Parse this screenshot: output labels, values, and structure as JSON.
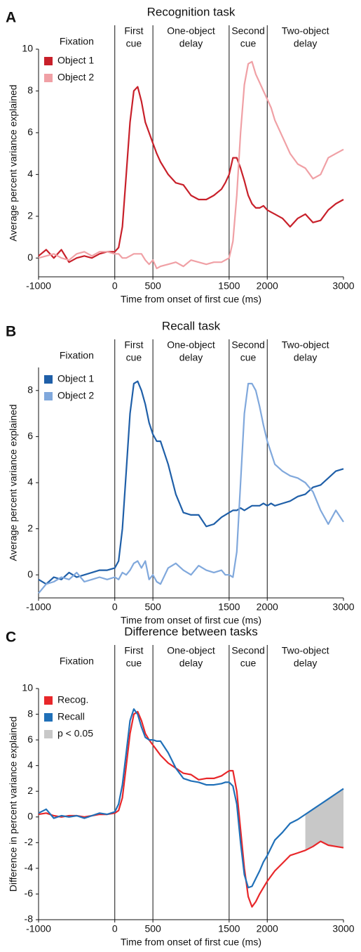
{
  "chart_data": [
    {
      "type": "line",
      "panel": "A",
      "title": "Recognition task",
      "phase_labels": [
        [
          "Fixation"
        ],
        [
          "First",
          "cue"
        ],
        [
          "One-object",
          "delay"
        ],
        [
          "Second",
          "cue"
        ],
        [
          "Two-object",
          "delay"
        ]
      ],
      "event_lines": [
        0,
        500,
        1500,
        2000
      ],
      "xlabel": "Time from onset of first cue (ms)",
      "ylabel": "Average percent variance explained",
      "xlim": [
        -1000,
        3000
      ],
      "xticks": [
        -1000,
        0,
        500,
        1500,
        2000,
        3000
      ],
      "ylim": [
        -0.9,
        10
      ],
      "yticks": [
        0,
        2,
        4,
        6,
        8,
        10
      ],
      "x": [
        -1000,
        -900,
        -800,
        -700,
        -600,
        -500,
        -400,
        -300,
        -200,
        -100,
        0,
        50,
        100,
        150,
        200,
        250,
        300,
        350,
        400,
        450,
        500,
        550,
        600,
        700,
        800,
        900,
        1000,
        1100,
        1200,
        1300,
        1400,
        1450,
        1500,
        1550,
        1600,
        1650,
        1700,
        1750,
        1800,
        1850,
        1900,
        1950,
        2000,
        2050,
        2100,
        2200,
        2300,
        2400,
        2500,
        2600,
        2700,
        2800,
        2900,
        3000
      ],
      "series": [
        {
          "name": "Object 1",
          "color": "#c8202a",
          "values": [
            0.1,
            0.4,
            0.0,
            0.4,
            -0.2,
            0.0,
            0.1,
            0.0,
            0.2,
            0.3,
            0.3,
            0.5,
            1.5,
            4.0,
            6.5,
            8.0,
            8.2,
            7.5,
            6.5,
            6.0,
            5.5,
            5.0,
            4.6,
            4.0,
            3.6,
            3.5,
            3.0,
            2.8,
            2.8,
            3.0,
            3.3,
            3.6,
            4.0,
            4.8,
            4.8,
            4.3,
            3.7,
            3.0,
            2.6,
            2.4,
            2.4,
            2.5,
            2.3,
            2.2,
            2.1,
            1.9,
            1.5,
            1.9,
            2.1,
            1.7,
            1.8,
            2.3,
            2.6,
            2.8
          ]
        },
        {
          "name": "Object 2",
          "color": "#f0a0a5",
          "values": [
            0.0,
            0.1,
            0.2,
            0.0,
            -0.1,
            0.2,
            0.3,
            0.1,
            0.3,
            0.3,
            0.2,
            0.2,
            0.0,
            0.0,
            0.1,
            0.2,
            0.2,
            0.2,
            -0.1,
            -0.3,
            -0.1,
            -0.5,
            -0.4,
            -0.3,
            -0.2,
            -0.4,
            -0.1,
            -0.2,
            -0.3,
            -0.2,
            -0.2,
            -0.1,
            0.0,
            0.8,
            3.0,
            6.0,
            8.3,
            9.3,
            9.4,
            8.8,
            8.4,
            8.0,
            7.6,
            7.2,
            6.6,
            5.8,
            5.0,
            4.5,
            4.3,
            3.8,
            4.0,
            4.8,
            5.0,
            5.2
          ]
        }
      ]
    },
    {
      "type": "line",
      "panel": "B",
      "title": "Recall task",
      "phase_labels": [
        [
          "Fixation"
        ],
        [
          "First",
          "cue"
        ],
        [
          "One-object",
          "delay"
        ],
        [
          "Second",
          "cue"
        ],
        [
          "Two-object",
          "delay"
        ]
      ],
      "event_lines": [
        0,
        500,
        1500,
        2000
      ],
      "xlabel": "Time from onset of first cue (ms)",
      "ylabel": "Average percent variance explained",
      "xlim": [
        -1000,
        3000
      ],
      "xticks": [
        -1000,
        0,
        500,
        1500,
        2000,
        3000
      ],
      "ylim": [
        -1,
        9
      ],
      "yticks": [
        0,
        2,
        4,
        6,
        8
      ],
      "x": [
        -1000,
        -900,
        -800,
        -700,
        -600,
        -500,
        -400,
        -300,
        -200,
        -100,
        0,
        50,
        100,
        150,
        200,
        250,
        300,
        350,
        400,
        450,
        500,
        550,
        600,
        700,
        800,
        900,
        1000,
        1100,
        1200,
        1300,
        1400,
        1450,
        1500,
        1550,
        1600,
        1650,
        1700,
        1750,
        1800,
        1850,
        1900,
        1950,
        2000,
        2050,
        2100,
        2200,
        2300,
        2400,
        2500,
        2600,
        2700,
        2800,
        2900,
        3000
      ],
      "series": [
        {
          "name": "Object 1",
          "color": "#1f5fa8",
          "values": [
            -0.2,
            -0.4,
            -0.1,
            -0.2,
            0.1,
            -0.1,
            0.0,
            0.1,
            0.2,
            0.2,
            0.3,
            0.6,
            2.0,
            4.5,
            7.0,
            8.3,
            8.4,
            8.0,
            7.4,
            6.6,
            6.1,
            5.8,
            5.8,
            4.8,
            3.5,
            2.7,
            2.6,
            2.6,
            2.1,
            2.2,
            2.5,
            2.6,
            2.7,
            2.8,
            2.8,
            2.9,
            2.8,
            2.9,
            3.0,
            3.0,
            3.0,
            3.1,
            3.0,
            3.1,
            3.0,
            3.1,
            3.2,
            3.4,
            3.5,
            3.8,
            3.9,
            4.2,
            4.5,
            4.6
          ]
        },
        {
          "name": "Object 2",
          "color": "#80a8dc",
          "values": [
            -0.8,
            -0.4,
            -0.3,
            -0.1,
            -0.2,
            0.1,
            -0.3,
            -0.2,
            -0.1,
            -0.2,
            -0.1,
            -0.2,
            0.1,
            0.0,
            0.2,
            0.5,
            0.6,
            0.3,
            0.6,
            -0.2,
            0.0,
            -0.3,
            -0.4,
            0.3,
            0.5,
            0.2,
            0.0,
            0.4,
            0.2,
            0.1,
            0.2,
            0.0,
            0.0,
            -0.1,
            1.0,
            4.0,
            7.0,
            8.3,
            8.3,
            8.0,
            7.3,
            6.5,
            5.8,
            5.3,
            4.8,
            4.5,
            4.3,
            4.2,
            4.0,
            3.6,
            2.8,
            2.2,
            2.8,
            2.3
          ]
        }
      ]
    },
    {
      "type": "line",
      "panel": "C",
      "title": "Difference between tasks",
      "phase_labels": [
        [
          "Fixation"
        ],
        [
          "First",
          "cue"
        ],
        [
          "One-object",
          "delay"
        ],
        [
          "Second",
          "cue"
        ],
        [
          "Two-object",
          "delay"
        ]
      ],
      "event_lines": [
        0,
        500,
        1500,
        2000
      ],
      "xlabel": "Time from onset of first cue (ms)",
      "ylabel": "Difference in percent variance explained",
      "xlim": [
        -1000,
        3000
      ],
      "xticks": [
        -1000,
        0,
        500,
        1500,
        2000,
        3000
      ],
      "ylim": [
        -8,
        10
      ],
      "yticks": [
        -8,
        -6,
        -4,
        -2,
        0,
        2,
        4,
        6,
        8,
        10
      ],
      "x": [
        -1000,
        -900,
        -800,
        -700,
        -600,
        -500,
        -400,
        -300,
        -200,
        -100,
        0,
        50,
        100,
        150,
        200,
        250,
        300,
        350,
        400,
        450,
        500,
        550,
        600,
        700,
        800,
        900,
        1000,
        1100,
        1200,
        1300,
        1400,
        1450,
        1500,
        1550,
        1600,
        1650,
        1700,
        1750,
        1800,
        1850,
        1900,
        1950,
        2000,
        2050,
        2100,
        2200,
        2300,
        2400,
        2500,
        2600,
        2700,
        2800,
        2900,
        3000
      ],
      "series": [
        {
          "name": "Recog.",
          "color": "#e8272a",
          "values": [
            0.2,
            0.3,
            0.1,
            0.0,
            0.1,
            0.1,
            0.0,
            0.1,
            0.2,
            0.2,
            0.3,
            0.5,
            1.5,
            4.0,
            6.5,
            8.0,
            8.2,
            7.5,
            6.5,
            6.0,
            5.6,
            5.2,
            4.8,
            4.2,
            3.8,
            3.4,
            3.3,
            2.9,
            3.0,
            3.0,
            3.2,
            3.4,
            3.6,
            3.6,
            2.0,
            -1.0,
            -4.0,
            -6.2,
            -7.0,
            -6.6,
            -6.0,
            -5.5,
            -5.0,
            -4.6,
            -4.2,
            -3.6,
            -3.0,
            -2.8,
            -2.6,
            -2.3,
            -1.9,
            -2.2,
            -2.3,
            -2.4
          ]
        },
        {
          "name": "Recall",
          "color": "#2070b8",
          "values": [
            0.3,
            0.6,
            -0.1,
            0.1,
            0.0,
            0.1,
            -0.1,
            0.1,
            0.3,
            0.2,
            0.4,
            1.0,
            2.5,
            5.0,
            7.5,
            8.4,
            8.0,
            7.0,
            6.2,
            6.0,
            6.0,
            5.9,
            5.9,
            5.0,
            3.8,
            3.0,
            2.8,
            2.7,
            2.5,
            2.5,
            2.6,
            2.7,
            2.7,
            2.4,
            1.0,
            -2.0,
            -4.5,
            -5.5,
            -5.4,
            -4.8,
            -4.2,
            -3.5,
            -3.0,
            -2.4,
            -1.8,
            -1.2,
            -0.5,
            -0.2,
            0.2,
            0.6,
            1.0,
            1.4,
            1.8,
            2.2
          ]
        }
      ],
      "shade": {
        "name": "p < 0.05",
        "color": "#c8c8c8",
        "from": 2500,
        "to": 3000
      }
    }
  ]
}
